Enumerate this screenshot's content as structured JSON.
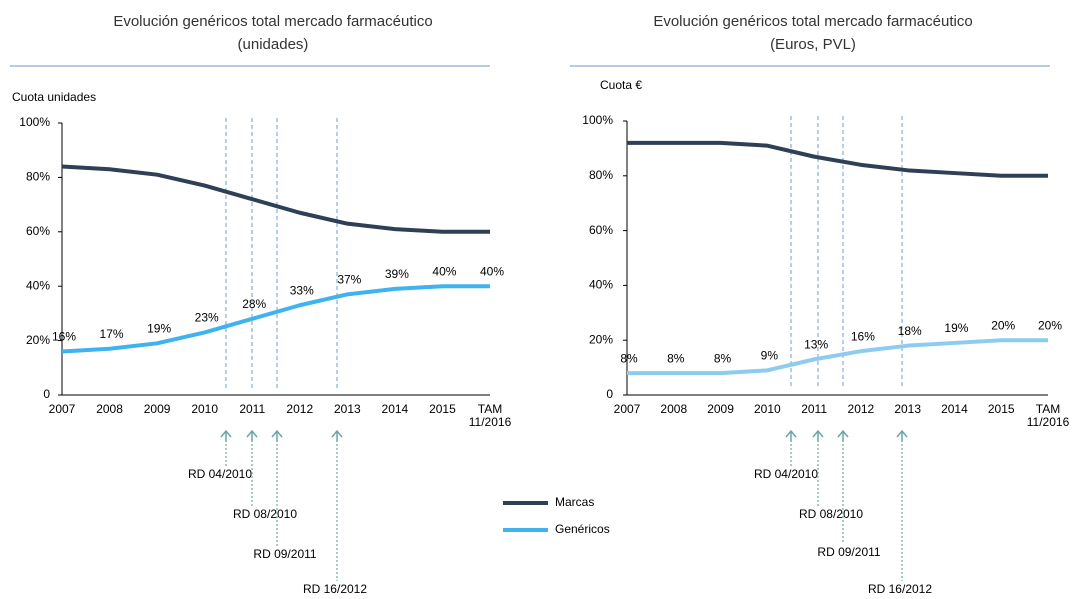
{
  "chart_data": [
    {
      "type": "line",
      "title": "Evolución genéricos total mercado farmacéutico",
      "subtitle": "(unidades)",
      "ylabel": "Cuota unidades",
      "categories": [
        "2007",
        "2008",
        "2009",
        "2010",
        "2011",
        "2012",
        "2013",
        "2014",
        "2015",
        "TAM 11/2016"
      ],
      "series": [
        {
          "name": "Marcas",
          "color": "#2e3f56",
          "values": [
            84,
            83,
            81,
            77,
            72,
            67,
            63,
            61,
            60,
            60
          ]
        },
        {
          "name": "Genéricos",
          "color": "#3fb3ef",
          "values": [
            16,
            17,
            19,
            23,
            28,
            33,
            37,
            39,
            40,
            40
          ],
          "value_labels": [
            "16%",
            "17%",
            "19%",
            "23%",
            "28%",
            "33%",
            "37%",
            "39%",
            "40%",
            "40%"
          ]
        }
      ],
      "ylim": [
        0,
        100
      ],
      "yticks": [
        0,
        {
          "value": 20,
          "label": "20%"
        },
        {
          "value": 40,
          "label": "40%"
        },
        {
          "value": 60,
          "label": "60%"
        },
        {
          "value": 80,
          "label": "80%"
        },
        {
          "value": 100,
          "label": "100%"
        }
      ],
      "annotations": [
        "RD 04/2010",
        "RD 08/2010",
        "RD 09/2011",
        "RD 16/2012"
      ]
    },
    {
      "type": "line",
      "title": "Evolución genéricos total mercado farmacéutico",
      "subtitle": "(Euros, PVL)",
      "ylabel": "Cuota €",
      "categories": [
        "2007",
        "2008",
        "2009",
        "2010",
        "2011",
        "2012",
        "2013",
        "2014",
        "2015",
        "TAM 11/2016"
      ],
      "series": [
        {
          "name": "Marcas",
          "color": "#2e3f56",
          "values": [
            92,
            92,
            92,
            91,
            87,
            84,
            82,
            81,
            80,
            80
          ]
        },
        {
          "name": "Genéricos",
          "color": "#8ecbf0",
          "values": [
            8,
            8,
            8,
            9,
            13,
            16,
            18,
            19,
            20,
            20
          ],
          "value_labels": [
            "8%",
            "8%",
            "8%",
            "9%",
            "13%",
            "16%",
            "18%",
            "19%",
            "20%",
            "20%"
          ]
        }
      ],
      "ylim": [
        0,
        100
      ],
      "yticks": [
        0,
        {
          "value": 20,
          "label": "20%"
        },
        {
          "value": 40,
          "label": "40%"
        },
        {
          "value": 60,
          "label": "60%"
        },
        {
          "value": 80,
          "label": "80%"
        },
        {
          "value": 100,
          "label": "100%"
        }
      ],
      "annotations": [
        "RD 04/2010",
        "RD 08/2010",
        "RD 09/2011",
        "RD 16/2012"
      ]
    }
  ]
}
